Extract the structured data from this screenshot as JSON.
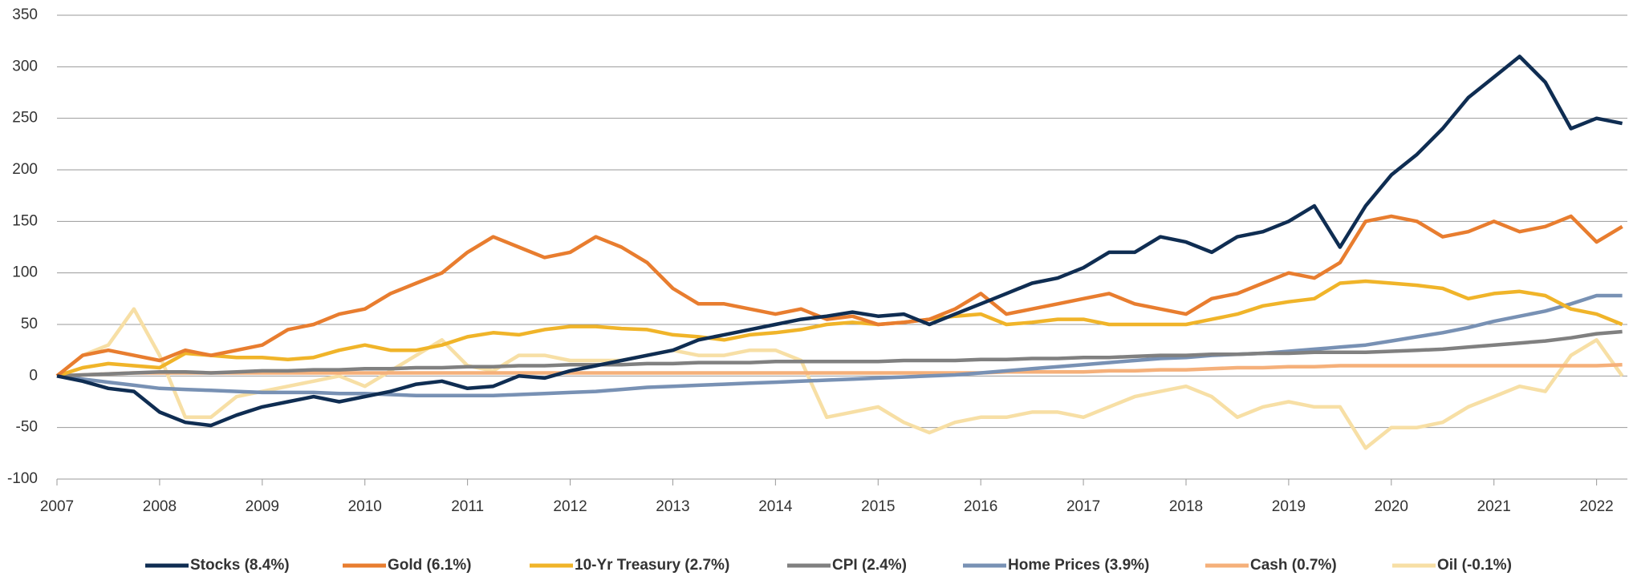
{
  "chart_data": {
    "type": "line",
    "x": [
      2007,
      2007.25,
      2007.5,
      2007.75,
      2008,
      2008.25,
      2008.5,
      2008.75,
      2009,
      2009.25,
      2009.5,
      2009.75,
      2010,
      2010.25,
      2010.5,
      2010.75,
      2011,
      2011.25,
      2011.5,
      2011.75,
      2012,
      2012.25,
      2012.5,
      2012.75,
      2013,
      2013.25,
      2013.5,
      2013.75,
      2014,
      2014.25,
      2014.5,
      2014.75,
      2015,
      2015.25,
      2015.5,
      2015.75,
      2016,
      2016.25,
      2016.5,
      2016.75,
      2017,
      2017.25,
      2017.5,
      2017.75,
      2018,
      2018.25,
      2018.5,
      2018.75,
      2019,
      2019.25,
      2019.5,
      2019.75,
      2020,
      2020.25,
      2020.5,
      2020.75,
      2021,
      2021.25,
      2021.5,
      2021.75,
      2022,
      2022.25
    ],
    "xlim": [
      2007,
      2022.3
    ],
    "xticks": [
      2007,
      2008,
      2009,
      2010,
      2011,
      2012,
      2013,
      2014,
      2015,
      2016,
      2017,
      2018,
      2019,
      2020,
      2021,
      2022
    ],
    "ylim": [
      -100,
      350
    ],
    "yticks": [
      -100,
      -50,
      0,
      50,
      100,
      150,
      200,
      250,
      300,
      350
    ],
    "grid": true,
    "series": [
      {
        "name": "Stocks (8.4%)",
        "color": "#0f2d52",
        "values": [
          0,
          -5,
          -12,
          -15,
          -35,
          -45,
          -48,
          -38,
          -30,
          -25,
          -20,
          -25,
          -20,
          -15,
          -8,
          -5,
          -12,
          -10,
          0,
          -2,
          5,
          10,
          15,
          20,
          25,
          35,
          40,
          45,
          50,
          55,
          58,
          62,
          58,
          60,
          50,
          60,
          70,
          80,
          90,
          95,
          105,
          120,
          120,
          135,
          130,
          120,
          135,
          140,
          150,
          165,
          125,
          165,
          195,
          215,
          240,
          270,
          290,
          310,
          285,
          240,
          250,
          245
        ]
      },
      {
        "name": "Gold (6.1%)",
        "color": "#e87d2f",
        "values": [
          0,
          20,
          25,
          20,
          15,
          25,
          20,
          25,
          30,
          45,
          50,
          60,
          65,
          80,
          90,
          100,
          120,
          135,
          125,
          115,
          120,
          135,
          125,
          110,
          85,
          70,
          70,
          65,
          60,
          65,
          55,
          58,
          50,
          52,
          55,
          65,
          80,
          60,
          65,
          70,
          75,
          80,
          70,
          65,
          60,
          75,
          80,
          90,
          100,
          95,
          110,
          150,
          155,
          150,
          135,
          140,
          150,
          140,
          145,
          155,
          130,
          145
        ]
      },
      {
        "name": "10-Yr Treasury (2.7%)",
        "color": "#f0b429",
        "values": [
          0,
          8,
          12,
          10,
          8,
          22,
          20,
          18,
          18,
          16,
          18,
          25,
          30,
          25,
          25,
          30,
          38,
          42,
          40,
          45,
          48,
          48,
          46,
          45,
          40,
          38,
          35,
          40,
          42,
          45,
          50,
          52,
          50,
          52,
          55,
          58,
          60,
          50,
          52,
          55,
          55,
          50,
          50,
          50,
          50,
          55,
          60,
          68,
          72,
          75,
          90,
          92,
          90,
          88,
          85,
          75,
          80,
          82,
          78,
          65,
          60,
          50
        ]
      },
      {
        "name": "CPI (2.4%)",
        "color": "#808080",
        "values": [
          0,
          1,
          2,
          3,
          4,
          4,
          3,
          4,
          5,
          5,
          6,
          6,
          7,
          7,
          8,
          8,
          9,
          9,
          10,
          10,
          11,
          11,
          11,
          12,
          12,
          13,
          13,
          13,
          14,
          14,
          14,
          14,
          14,
          15,
          15,
          15,
          16,
          16,
          17,
          17,
          18,
          18,
          19,
          20,
          20,
          21,
          21,
          22,
          22,
          23,
          23,
          23,
          24,
          25,
          26,
          28,
          30,
          32,
          34,
          37,
          41,
          43
        ]
      },
      {
        "name": "Home Prices (3.9%)",
        "color": "#7891b4",
        "values": [
          0,
          -3,
          -6,
          -9,
          -12,
          -13,
          -14,
          -15,
          -16,
          -16,
          -16,
          -17,
          -17,
          -18,
          -19,
          -19,
          -19,
          -19,
          -18,
          -17,
          -16,
          -15,
          -13,
          -11,
          -10,
          -9,
          -8,
          -7,
          -6,
          -5,
          -4,
          -3,
          -2,
          -1,
          0,
          1,
          3,
          5,
          7,
          9,
          11,
          13,
          15,
          17,
          18,
          20,
          21,
          22,
          24,
          26,
          28,
          30,
          34,
          38,
          42,
          47,
          53,
          58,
          63,
          70,
          78,
          78
        ]
      },
      {
        "name": "Cash (0.7%)",
        "color": "#f5b07a",
        "values": [
          0,
          1,
          2,
          3,
          3,
          3,
          3,
          3,
          3,
          3,
          3,
          3,
          3,
          3,
          3,
          3,
          3,
          3,
          3,
          3,
          3,
          3,
          3,
          3,
          3,
          3,
          3,
          3,
          3,
          3,
          3,
          3,
          3,
          3,
          3,
          3,
          3,
          4,
          4,
          4,
          4,
          5,
          5,
          6,
          6,
          7,
          8,
          8,
          9,
          9,
          10,
          10,
          10,
          10,
          10,
          10,
          10,
          10,
          10,
          10,
          10,
          11
        ]
      },
      {
        "name": "Oil (-0.1%)",
        "color": "#f7dfa5",
        "values": [
          0,
          20,
          30,
          65,
          20,
          -40,
          -40,
          -20,
          -15,
          -10,
          -5,
          0,
          -10,
          5,
          20,
          35,
          10,
          5,
          20,
          20,
          15,
          15,
          15,
          20,
          25,
          20,
          20,
          25,
          25,
          15,
          -40,
          -35,
          -30,
          -45,
          -55,
          -45,
          -40,
          -40,
          -35,
          -35,
          -40,
          -30,
          -20,
          -15,
          -10,
          -20,
          -40,
          -30,
          -25,
          -30,
          -30,
          -70,
          -50,
          -50,
          -45,
          -30,
          -20,
          -10,
          -15,
          20,
          35,
          0
        ]
      }
    ]
  }
}
